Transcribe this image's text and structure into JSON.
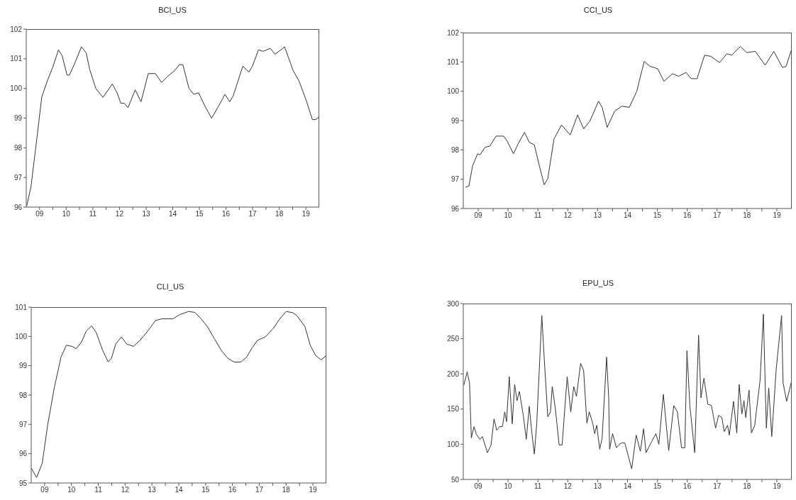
{
  "chart_data": [
    {
      "type": "line",
      "title": "BCI_US",
      "color": "#333333",
      "xlim": [
        8.5,
        19.5
      ],
      "ylim": [
        96,
        102
      ],
      "yticks": [
        96,
        97,
        98,
        99,
        100,
        101,
        102
      ],
      "xticks": [
        {
          "value": 9,
          "label": "09"
        },
        {
          "value": 9.5,
          "label": null
        },
        10,
        {
          "value": 10.5,
          "label": null
        },
        11,
        {
          "value": 11.5,
          "label": null
        },
        12,
        {
          "value": 12.5,
          "label": null
        },
        13,
        {
          "value": 13.5,
          "label": null
        },
        14,
        {
          "value": 14.5,
          "label": null
        },
        15,
        {
          "value": 15.5,
          "label": null
        },
        16,
        {
          "value": 16.5,
          "label": null
        },
        17,
        {
          "value": 17.5,
          "label": null
        },
        18,
        {
          "value": 18.5,
          "label": null
        },
        19
      ],
      "x": [
        8.52,
        8.68,
        8.95,
        9.08,
        9.31,
        9.49,
        9.71,
        9.85,
        10.03,
        10.12,
        10.3,
        10.57,
        10.75,
        10.88,
        11.11,
        11.38,
        11.73,
        11.91,
        12.05,
        12.18,
        12.32,
        12.59,
        12.81,
        13.08,
        13.35,
        13.58,
        13.8,
        14.07,
        14.25,
        14.38,
        14.61,
        14.79,
        14.97,
        15.24,
        15.46,
        15.78,
        15.96,
        16.14,
        16.27,
        16.63,
        16.86,
        16.99,
        17.22,
        17.39,
        17.66,
        17.84,
        18.2,
        18.52,
        18.74,
        19.01,
        19.24,
        19.37,
        19.5
      ],
      "values": [
        96.04,
        96.7,
        98.7,
        99.7,
        100.3,
        100.7,
        101.3,
        101.1,
        100.45,
        100.45,
        100.8,
        101.4,
        101.2,
        100.65,
        100.0,
        99.7,
        100.15,
        99.85,
        99.5,
        99.5,
        99.35,
        99.95,
        99.55,
        100.5,
        100.5,
        100.2,
        100.4,
        100.6,
        100.8,
        100.8,
        100.0,
        99.8,
        99.85,
        99.35,
        99.0,
        99.5,
        99.8,
        99.55,
        99.75,
        100.75,
        100.55,
        100.75,
        101.3,
        101.25,
        101.35,
        101.15,
        101.4,
        100.6,
        100.25,
        99.6,
        98.95,
        98.95,
        99.05
      ]
    },
    {
      "type": "line",
      "title": "CCI_US",
      "color": "#333333",
      "xlim": [
        8.5,
        19.5
      ],
      "ylim": [
        96,
        102
      ],
      "yticks": [
        96,
        97,
        98,
        99,
        100,
        101,
        102
      ],
      "xticks": [
        {
          "value": 9,
          "label": "09"
        },
        {
          "value": 9.5,
          "label": null
        },
        10,
        {
          "value": 10.5,
          "label": null
        },
        11,
        {
          "value": 11.5,
          "label": null
        },
        12,
        {
          "value": 12.5,
          "label": null
        },
        13,
        {
          "value": 13.5,
          "label": null
        },
        14,
        {
          "value": 14.5,
          "label": null
        },
        15,
        {
          "value": 15.5,
          "label": null
        },
        16,
        {
          "value": 16.5,
          "label": null
        },
        17,
        {
          "value": 17.5,
          "label": null
        },
        18,
        {
          "value": 18.5,
          "label": null
        },
        19
      ],
      "x": [
        8.57,
        8.69,
        8.81,
        8.98,
        9.06,
        9.23,
        9.39,
        9.6,
        9.85,
        9.97,
        10.18,
        10.34,
        10.55,
        10.71,
        10.88,
        11.05,
        11.21,
        11.33,
        11.54,
        11.79,
        12.08,
        12.33,
        12.53,
        12.74,
        13.03,
        13.15,
        13.32,
        13.57,
        13.81,
        14.06,
        14.31,
        14.56,
        14.76,
        15.01,
        15.22,
        15.51,
        15.71,
        15.96,
        16.13,
        16.33,
        16.58,
        16.79,
        17.08,
        17.33,
        17.49,
        17.78,
        17.99,
        18.28,
        18.61,
        18.9,
        19.19,
        19.31,
        19.5
      ],
      "values": [
        96.72,
        96.77,
        97.45,
        97.87,
        97.83,
        98.09,
        98.13,
        98.47,
        98.47,
        98.3,
        97.87,
        98.21,
        98.6,
        98.26,
        98.17,
        97.45,
        96.81,
        97.02,
        98.38,
        98.85,
        98.51,
        99.19,
        98.72,
        98.98,
        99.66,
        99.45,
        98.77,
        99.32,
        99.49,
        99.45,
        100.0,
        101.02,
        100.85,
        100.77,
        100.34,
        100.6,
        100.51,
        100.64,
        100.43,
        100.43,
        101.23,
        101.19,
        100.98,
        101.28,
        101.23,
        101.53,
        101.32,
        101.36,
        100.89,
        101.36,
        100.81,
        100.85,
        101.45
      ]
    },
    {
      "type": "line",
      "title": "CLI_US",
      "color": "#333333",
      "xlim": [
        8.5,
        19.5
      ],
      "ylim": [
        95,
        101
      ],
      "yticks": [
        95,
        96,
        97,
        98,
        99,
        100,
        101
      ],
      "xticks": [
        {
          "value": 9,
          "label": "09"
        },
        {
          "value": 9.5,
          "label": null
        },
        10,
        {
          "value": 10.5,
          "label": null
        },
        11,
        {
          "value": 11.5,
          "label": null
        },
        12,
        {
          "value": 12.5,
          "label": null
        },
        13,
        {
          "value": 13.5,
          "label": null
        },
        14,
        {
          "value": 14.5,
          "label": null
        },
        15,
        {
          "value": 15.5,
          "label": null
        },
        16,
        {
          "value": 16.5,
          "label": null
        },
        17,
        {
          "value": 17.5,
          "label": null
        },
        18,
        {
          "value": 18.5,
          "label": null
        },
        19
      ],
      "x": [
        8.5,
        8.7,
        8.91,
        9.11,
        9.36,
        9.61,
        9.81,
        10.02,
        10.18,
        10.38,
        10.55,
        10.75,
        10.92,
        11.16,
        11.37,
        11.49,
        11.65,
        11.86,
        12.06,
        12.31,
        12.55,
        12.84,
        13.13,
        13.37,
        13.78,
        14.03,
        14.36,
        14.6,
        14.85,
        15.09,
        15.34,
        15.58,
        15.83,
        16.08,
        16.32,
        16.53,
        16.73,
        16.94,
        17.22,
        17.51,
        17.75,
        18.0,
        18.25,
        18.41,
        18.7,
        18.9,
        19.1,
        19.3,
        19.5
      ],
      "values": [
        95.51,
        95.19,
        95.67,
        96.96,
        98.25,
        99.29,
        99.7,
        99.66,
        99.58,
        99.82,
        100.18,
        100.36,
        100.14,
        99.53,
        99.13,
        99.25,
        99.74,
        99.98,
        99.74,
        99.66,
        99.86,
        100.18,
        100.54,
        100.6,
        100.6,
        100.74,
        100.85,
        100.82,
        100.58,
        100.3,
        99.9,
        99.53,
        99.25,
        99.12,
        99.13,
        99.29,
        99.61,
        99.87,
        99.98,
        100.26,
        100.58,
        100.85,
        100.81,
        100.7,
        100.34,
        99.7,
        99.35,
        99.2,
        99.35
      ]
    },
    {
      "type": "line",
      "title": "EPU_US",
      "color": "#333333",
      "xlim": [
        8.5,
        19.5
      ],
      "ylim": [
        50,
        300
      ],
      "yticks": [
        50,
        100,
        150,
        200,
        250,
        300
      ],
      "xticks": [
        {
          "value": 9,
          "label": "09"
        },
        {
          "value": 9.5,
          "label": null
        },
        10,
        {
          "value": 10.5,
          "label": null
        },
        11,
        {
          "value": 11.5,
          "label": null
        },
        12,
        {
          "value": 12.5,
          "label": null
        },
        13,
        {
          "value": 13.5,
          "label": null
        },
        14,
        {
          "value": 14.5,
          "label": null
        },
        15,
        {
          "value": 15.5,
          "label": null
        },
        16,
        {
          "value": 16.5,
          "label": null
        },
        17,
        {
          "value": 17.5,
          "label": null
        },
        18,
        {
          "value": 18.5,
          "label": null
        },
        19
      ],
      "x": [
        8.52,
        8.63,
        8.71,
        8.77,
        8.86,
        8.94,
        9.06,
        9.14,
        9.31,
        9.43,
        9.53,
        9.62,
        9.72,
        9.81,
        9.89,
        9.95,
        10.04,
        10.14,
        10.22,
        10.3,
        10.38,
        10.51,
        10.61,
        10.71,
        10.8,
        10.88,
        10.96,
        11.13,
        11.21,
        11.33,
        11.42,
        11.48,
        11.58,
        11.71,
        11.81,
        11.98,
        12.1,
        12.2,
        12.29,
        12.43,
        12.53,
        12.64,
        12.72,
        12.84,
        12.9,
        12.97,
        13.07,
        13.15,
        13.3,
        13.37,
        13.4,
        13.5,
        13.63,
        13.73,
        13.81,
        13.91,
        14.14,
        14.29,
        14.43,
        14.54,
        14.62,
        14.81,
        14.95,
        15.05,
        15.2,
        15.38,
        15.55,
        15.67,
        15.81,
        15.92,
        15.99,
        16.09,
        16.25,
        16.38,
        16.46,
        16.56,
        16.69,
        16.81,
        16.95,
        17.05,
        17.16,
        17.24,
        17.35,
        17.41,
        17.55,
        17.66,
        17.74,
        17.83,
        17.9,
        17.96,
        18.07,
        18.15,
        18.26,
        18.44,
        18.55,
        18.65,
        18.73,
        18.83,
        18.98,
        19.16,
        19.21,
        19.33,
        19.5
      ],
      "values": [
        184,
        203,
        187,
        109,
        125,
        114,
        107,
        111,
        88,
        99,
        136,
        120,
        125,
        125,
        146,
        132,
        196,
        129,
        185,
        162,
        175,
        141,
        107,
        154,
        115,
        86,
        129,
        283,
        223,
        139,
        146,
        182,
        152,
        99,
        99,
        196,
        146,
        182,
        168,
        215,
        205,
        130,
        146,
        129,
        115,
        127,
        93,
        109,
        224,
        166,
        93,
        115,
        95,
        100,
        102,
        102,
        65,
        113,
        90,
        122,
        88,
        104,
        115,
        100,
        171,
        91,
        155,
        146,
        95,
        95,
        233,
        154,
        88,
        255,
        166,
        194,
        157,
        155,
        123,
        141,
        138,
        118,
        127,
        113,
        161,
        116,
        185,
        143,
        162,
        138,
        177,
        116,
        127,
        191,
        285,
        123,
        180,
        111,
        207,
        283,
        187,
        161,
        191
      ]
    }
  ]
}
